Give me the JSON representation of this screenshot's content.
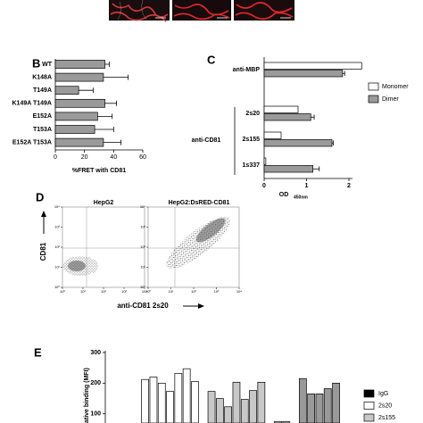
{
  "chart_data": [
    {
      "panel": "B",
      "type": "hbar",
      "categories": [
        "WT",
        "K148A",
        "T149A",
        "K149A T149A",
        "E152A",
        "T153A",
        "E152A T153A"
      ],
      "values": [
        34,
        33,
        16,
        34,
        29,
        27,
        33
      ],
      "errors": [
        3,
        17,
        10,
        8,
        10,
        13,
        12
      ],
      "color": "#9a9a9a",
      "xlabel": "%FRET with CD81",
      "xlim": [
        0,
        60
      ],
      "xticks": [
        0,
        20,
        40,
        60
      ]
    },
    {
      "panel": "C",
      "type": "grouped-hbar",
      "categories": [
        "anti-MBP",
        "2s20",
        "2s155",
        "1s337"
      ],
      "group_label": "anti-CD81",
      "series": [
        {
          "name": "Monomer",
          "color": "#ffffff",
          "values": [
            2.3,
            0.8,
            0.4,
            0.04
          ]
        },
        {
          "name": "Dimer",
          "color": "#9a9a9a",
          "values": [
            1.85,
            1.1,
            1.6,
            1.15
          ],
          "errors": [
            0.05,
            0.08,
            0.03,
            0.15
          ]
        }
      ],
      "xlabel": "OD",
      "xlabel_sub": "450nm",
      "xlim": [
        0,
        2.3
      ],
      "xticks": [
        0,
        1,
        2
      ]
    },
    {
      "panel": "D",
      "type": "flow",
      "plots": [
        "HepG2",
        "HepG2:DsRED-CD81"
      ],
      "xlabel": "anti-CD81 2s20",
      "ylabel": "CD81",
      "log": true,
      "xlim": [
        1,
        10000
      ],
      "ylim": [
        1,
        10000
      ],
      "xticks": [
        {
          "value": 1,
          "label": "10⁰"
        },
        {
          "value": 10,
          "label": "10¹"
        },
        {
          "value": 100,
          "label": "10²"
        },
        {
          "value": 1000,
          "label": "10³"
        },
        {
          "value": 10000,
          "label": "10⁴"
        }
      ],
      "yticks": [
        {
          "value": 1,
          "label": "10⁰"
        },
        {
          "value": 10,
          "label": "10¹"
        },
        {
          "value": 100,
          "label": "10²"
        },
        {
          "value": 1000,
          "label": "10³"
        },
        {
          "value": 10000,
          "label": "10⁴"
        }
      ]
    },
    {
      "panel": "E",
      "type": "bar",
      "categories": [
        null,
        null,
        null,
        null,
        null,
        null,
        null,
        null,
        null,
        null,
        null,
        null,
        null,
        null,
        null,
        null,
        null,
        null,
        null,
        null,
        null,
        null,
        null,
        null
      ],
      "values": [
        212,
        220,
        200,
        173,
        232,
        247,
        205,
        null,
        173,
        150,
        123,
        203,
        147,
        176,
        203,
        null,
        75,
        75,
        null,
        215,
        165,
        165,
        182,
        200
      ],
      "colors": [
        "#ffffff",
        "#ffffff",
        "#ffffff",
        "#ffffff",
        "#ffffff",
        "#ffffff",
        "#ffffff",
        null,
        "#c8c8c8",
        "#c8c8c8",
        "#c8c8c8",
        "#c8c8c8",
        "#c8c8c8",
        "#c8c8c8",
        "#c8c8c8",
        null,
        "#c8c8c8",
        "#c8c8c8",
        null,
        "#999999",
        "#999999",
        "#999999",
        "#999999",
        "#999999"
      ],
      "ylabel": "ative binding (MFI)",
      "legend": [
        {
          "name": "IgG",
          "color": "#000000"
        },
        {
          "name": "2s20",
          "color": "#ffffff"
        },
        {
          "name": "2s155",
          "color": "#c8c8c8"
        }
      ],
      "ylim": [
        70,
        300
      ],
      "yticks": [
        100,
        200,
        300
      ]
    }
  ]
}
